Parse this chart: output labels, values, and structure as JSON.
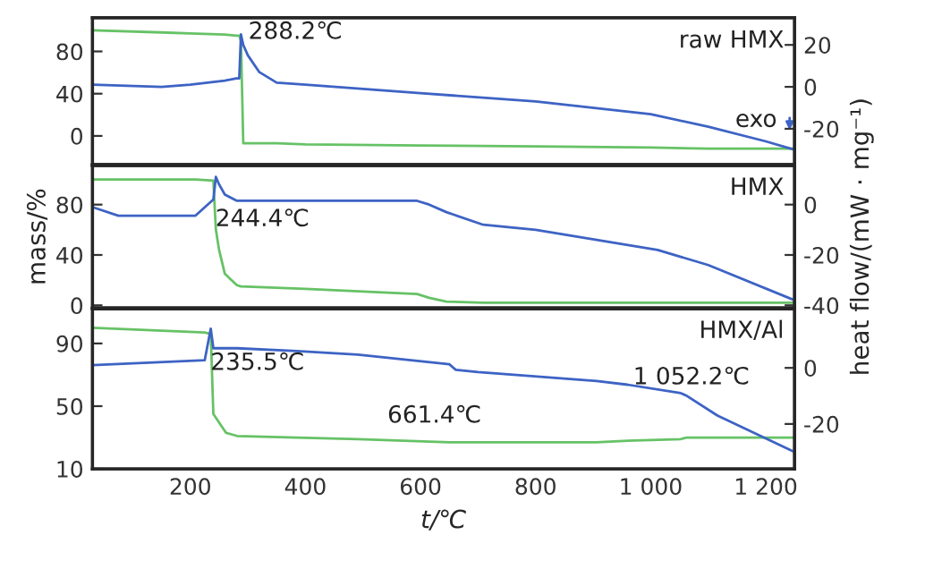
{
  "chart_data": [
    {
      "type": "line",
      "xlim": [
        30,
        1250
      ],
      "ylim": [
        -27,
        112
      ],
      "yticks": [
        0,
        40,
        80
      ],
      "y2lim": [
        -37,
        33
      ],
      "y2ticks": [
        -20,
        0,
        20
      ],
      "tick_labels": "y",
      "x": [
        30,
        150,
        200,
        260,
        280,
        285,
        288,
        292,
        300,
        320,
        350,
        400,
        600,
        800,
        1000,
        1100,
        1200,
        1250
      ],
      "series": [
        {
          "color": "#66c266",
          "values": [
            100,
            98,
            97,
            96,
            95,
            95,
            90,
            -7,
            -7,
            -7,
            -7,
            -8,
            -9,
            -10,
            -11,
            -12,
            -12,
            -12
          ]
        },
        {
          "color": "#3d63c4",
          "axis": "y2",
          "values": [
            1,
            0,
            1,
            3,
            4,
            4,
            25,
            20,
            15,
            7,
            2,
            1,
            -3,
            -7,
            -13,
            -19,
            -26,
            -30
          ]
        }
      ],
      "annotations": [
        "raw HMX",
        "exo",
        "288.2℃"
      ]
    },
    {
      "type": "line",
      "xlim": [
        30,
        1250
      ],
      "ylim": [
        -2,
        111
      ],
      "yticks": [
        0,
        40,
        80
      ],
      "y2lim": [
        -41,
        15.5
      ],
      "y2ticks": [
        -40,
        -20,
        0
      ],
      "tick_labels": "y",
      "ylabel": "mass/%",
      "y2label": "heat flow/(mW · mg⁻¹)",
      "x": [
        30,
        75,
        209,
        240,
        244.4,
        250,
        260,
        281,
        288,
        400,
        594,
        615,
        645,
        709,
        800,
        1012,
        1100,
        1250
      ],
      "series": [
        {
          "color": "#66c266",
          "values": [
            100,
            100,
            100,
            99,
            60,
            44,
            25,
            16,
            15,
            13,
            9,
            6,
            3,
            2,
            2,
            2,
            2,
            2
          ]
        },
        {
          "color": "#3d63c4",
          "axis": "y2",
          "values": [
            -1,
            -4.4,
            -4.4,
            2,
            11,
            8,
            4,
            1.5,
            1.5,
            1.5,
            1.5,
            0,
            -3,
            -8,
            -10,
            -18,
            -24,
            -38
          ]
        }
      ],
      "annotations": [
        "HMX",
        "244.4℃"
      ]
    },
    {
      "type": "line",
      "xlim": [
        30,
        1250
      ],
      "ylim": [
        10,
        112
      ],
      "yticks": [
        10,
        50,
        90
      ],
      "y2lim": [
        -36,
        21
      ],
      "y2ticks": [
        -20,
        0
      ],
      "xticks": [
        200,
        400,
        600,
        800,
        {
          "value": 1000,
          "label": "1 000"
        },
        {
          "value": 1200,
          "label": "1 200"
        }
      ],
      "xlabel": "t/℃",
      "x": [
        30,
        225,
        235.5,
        240,
        262,
        281,
        385,
        491,
        650,
        661.4,
        700,
        906,
        960,
        1052.2,
        1063,
        1116,
        1250
      ],
      "series": [
        {
          "color": "#66c266",
          "values": [
            100,
            97,
            96,
            45,
            33,
            31,
            30,
            29,
            27,
            27,
            27,
            27,
            28,
            29,
            30,
            30,
            30
          ]
        },
        {
          "color": "#3d63c4",
          "axis": "y2",
          "values": [
            1,
            2.7,
            14,
            7,
            7,
            7,
            6,
            4.7,
            1.3,
            -0.7,
            -1.5,
            -4.7,
            -6,
            -9,
            -10,
            -17,
            -30
          ]
        }
      ],
      "annotations": [
        "HMX/Al",
        "235.5℃",
        "661.4℃",
        "1 052.2℃"
      ]
    }
  ]
}
